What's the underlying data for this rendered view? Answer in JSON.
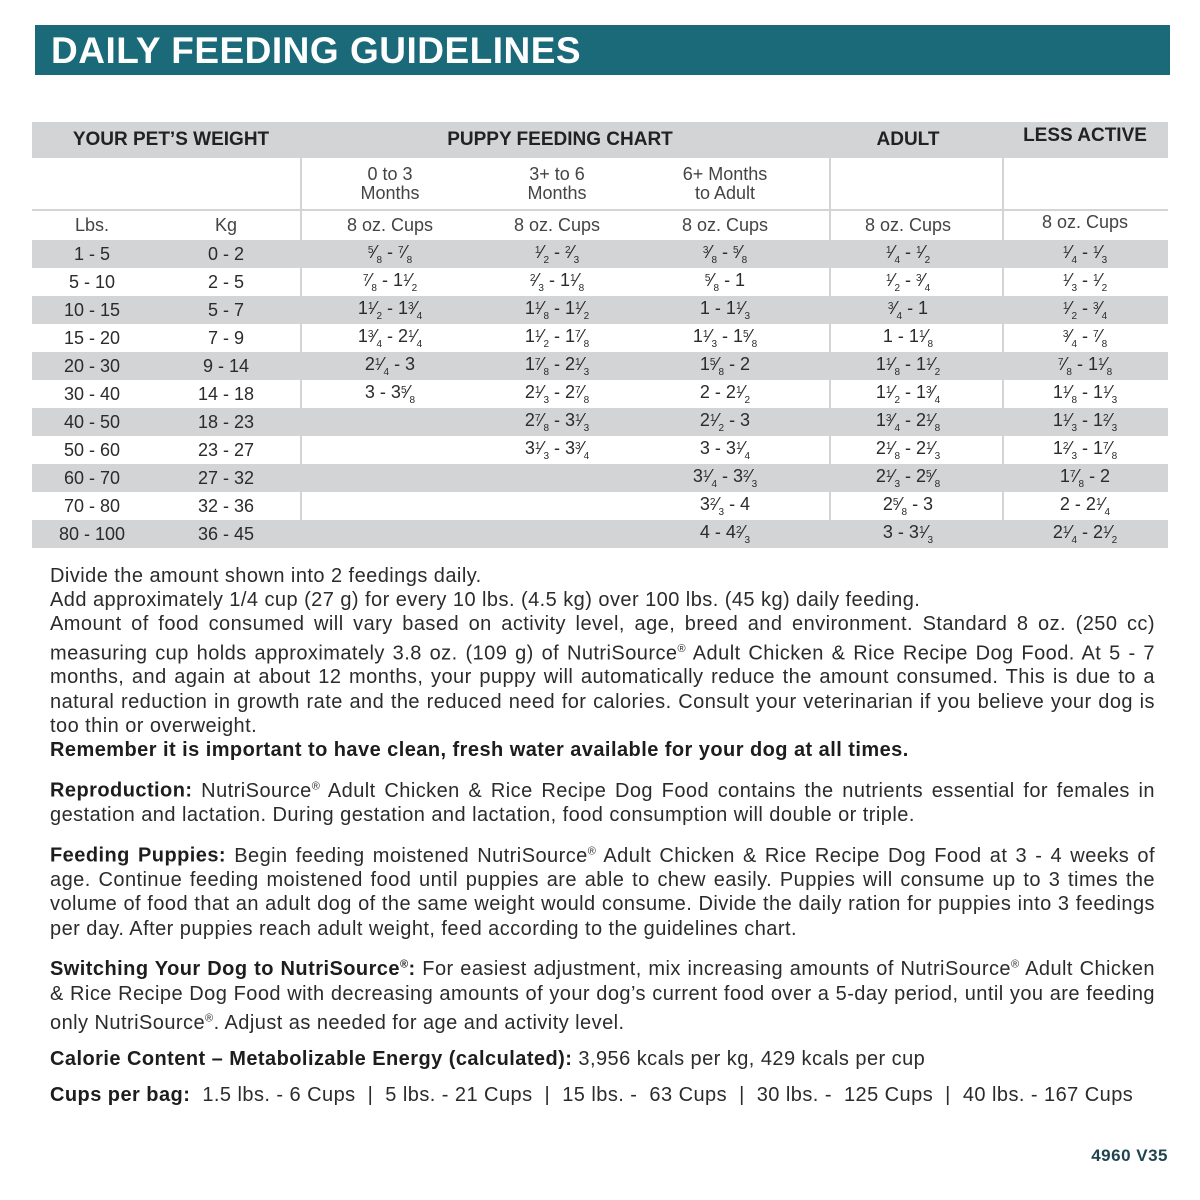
{
  "title": "DAILY FEEDING GUIDELINES",
  "colors": {
    "title_bar": "#1b6a7a",
    "shaded_row": "#d3d4d6"
  },
  "table": {
    "headers": {
      "weight": "YOUR PET’S WEIGHT",
      "puppy": "PUPPY FEEDING CHART",
      "adult": "ADULT",
      "less_active": "LESS ACTIVE"
    },
    "puppy_subheaders": [
      [
        "0 to 3",
        "Months"
      ],
      [
        "3+ to 6",
        "Months"
      ],
      [
        "6+ Months",
        "to Adult"
      ]
    ],
    "units": {
      "lbs": "Lbs.",
      "kg": "Kg",
      "cups": "8 oz. Cups"
    },
    "rows": [
      {
        "lbs": "1 - 5",
        "kg": "0 - 2",
        "p1": "5/8 - 7/8",
        "p2": "1/2 - 2/3",
        "p3": "3/8 - 5/8",
        "adult": "1/4 - 1/2",
        "less": "1/4 - 1/3"
      },
      {
        "lbs": "5 - 10",
        "kg": "2 - 5",
        "p1": "7/8 - 1 1/2",
        "p2": "2/3 - 1 1/8",
        "p3": "5/8 - 1",
        "adult": "1/2 - 3/4",
        "less": "1/3 - 1/2"
      },
      {
        "lbs": "10 - 15",
        "kg": "5 - 7",
        "p1": "1 1/2 - 1 3/4",
        "p2": "1 1/8 - 1 1/2",
        "p3": "1 - 1 1/3",
        "adult": "3/4 - 1",
        "less": "1/2 - 3/4"
      },
      {
        "lbs": "15 - 20",
        "kg": "7 - 9",
        "p1": "1 3/4 - 2 1/4",
        "p2": "1 1/2 - 1 7/8",
        "p3": "1 1/3 - 1 5/8",
        "adult": "1 - 1 1/8",
        "less": "3/4 - 7/8"
      },
      {
        "lbs": "20 - 30",
        "kg": "9 - 14",
        "p1": "2 1/4 - 3",
        "p2": "1 7/8 - 2 1/3",
        "p3": "1 5/8 - 2",
        "adult": "1 1/8 - 1 1/2",
        "less": "7/8 - 1 1/8"
      },
      {
        "lbs": "30 - 40",
        "kg": "14 - 18",
        "p1": "3 - 3 5/8",
        "p2": "2 1/3 - 2 7/8",
        "p3": "2 - 2 1/2",
        "adult": "1 1/2 - 1 3/4",
        "less": "1 1/8 - 1 1/3"
      },
      {
        "lbs": "40 - 50",
        "kg": "18 - 23",
        "p1": "",
        "p2": "2 7/8 - 3 1/3",
        "p3": "2 1/2 - 3",
        "adult": "1 3/4 - 2 1/8",
        "less": "1 1/3 - 1 2/3"
      },
      {
        "lbs": "50 - 60",
        "kg": "23 - 27",
        "p1": "",
        "p2": "3 1/3 - 3 3/4",
        "p3": "3 - 3 1/4",
        "adult": "2 1/8 - 2 1/3",
        "less": "1 2/3 - 1 7/8"
      },
      {
        "lbs": "60 - 70",
        "kg": "27 - 32",
        "p1": "",
        "p2": "",
        "p3": "3 1/4 - 3 2/3",
        "adult": "2 1/3 - 2 5/8",
        "less": "1 7/8 - 2"
      },
      {
        "lbs": "70 - 80",
        "kg": "32 - 36",
        "p1": "",
        "p2": "",
        "p3": "3 2/3 - 4",
        "adult": "2 5/8 - 3",
        "less": "2 - 2 1/4"
      },
      {
        "lbs": "80 - 100",
        "kg": "36 - 45",
        "p1": "",
        "p2": "",
        "p3": "4 - 4 2/3",
        "adult": "3 - 3 1/3",
        "less": "2 1/4 - 2 1/2"
      }
    ]
  },
  "notes": {
    "intro": "Divide the amount shown into 2 feedings daily.",
    "add": "Add approximately 1/4 cup (27 g) for every 10 lbs. (4.5 kg) over 100 lbs. (45 kg) daily feeding.",
    "amount": "Amount of food consumed will vary based on activity level, age, breed and environment. Standard 8 oz. (250 cc) measuring cup holds approximately 3.8 oz. (109 g)  of NutriSource® Adult Chicken & Rice Recipe Dog Food. At 5 - 7 months, and again at about 12 months, your puppy will automatically reduce the amount consumed. This is due to a natural reduction in growth rate and the reduced need for calories. Consult your veterinarian if you believe your dog is too thin or overweight.",
    "water": "Remember it is important to have clean, fresh water available for your dog at all times."
  },
  "sections": [
    {
      "lead": "Reproduction:",
      "body": " NutriSource® Adult Chicken & Rice Recipe Dog Food contains the nutrients essential for females in gestation and lactation. During gestation and lactation, food consumption will double or triple."
    },
    {
      "lead": "Feeding Puppies:",
      "body": " Begin feeding moistened NutriSource® Adult Chicken & Rice Recipe Dog Food at 3 - 4 weeks of age. Continue feeding moistened food until puppies are able to chew easily. Puppies will consume up to 3 times the volume of food that an adult dog of the same weight would consume. Divide the daily ration for puppies into 3 feedings per day. After puppies reach adult weight, feed according to the guidelines chart."
    },
    {
      "lead": "Switching Your Dog to NutriSource®:",
      "body": " For easiest adjustment, mix increasing amounts of NutriSource® Adult Chicken & Rice Recipe Dog Food with decreasing amounts of your dog’s current food over a 5-day period, until you are feeding only NutriSource®. Adjust as needed for age and activity level."
    },
    {
      "lead": "Calorie Content – Metabolizable Energy (calculated):",
      "body": " 3,956 kcals per kg, 429 kcals per cup"
    },
    {
      "lead": "Cups per bag:",
      "body": "  1.5 lbs. - 6 Cups  |  5 lbs. - 21 Cups  |  15 lbs. -  63 Cups  |  30 lbs. -  125 Cups  |  40 lbs. - 167 Cups"
    }
  ],
  "code": "4960 V35"
}
